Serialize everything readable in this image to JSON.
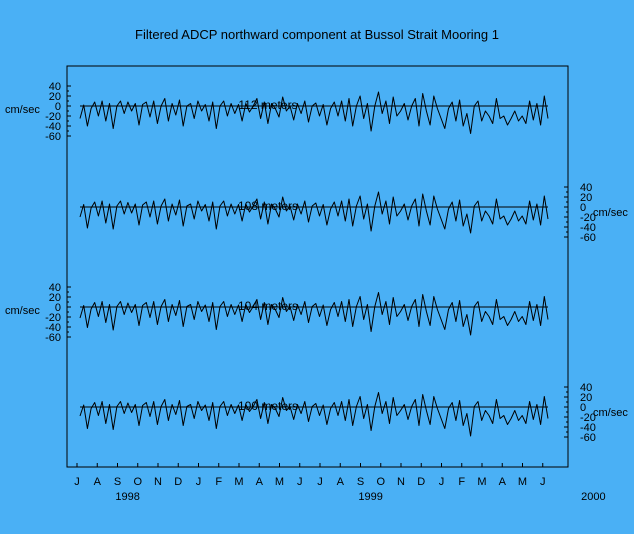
{
  "chart_data": {
    "type": "line",
    "title": "Filtered ADCP northward component at Bussol Strait Mooring 1",
    "background_color": "#4ab0f5",
    "line_color": "#000000",
    "y_unit_label": "cm/sec",
    "y_ticks": [
      "40",
      "20",
      "0",
      "-20",
      "-40",
      "-60"
    ],
    "ylim": [
      -60,
      40
    ],
    "y_axis_sides": [
      "left",
      "right",
      "left",
      "right"
    ],
    "x_month_labels": [
      "J",
      "A",
      "S",
      "O",
      "N",
      "D",
      "J",
      "F",
      "M",
      "A",
      "M",
      "J",
      "J",
      "A",
      "S",
      "O",
      "N",
      "D",
      "J",
      "F",
      "M",
      "A",
      "M",
      "J"
    ],
    "x_year_labels": [
      {
        "label": "1998",
        "month_index": 2.5
      },
      {
        "label": "1999",
        "month_index": 14.5
      },
      {
        "label": "2000",
        "month_index": 25.5
      }
    ],
    "x_start": "1998-07",
    "sample_interval_days": 3,
    "series": [
      {
        "name": "112 meters",
        "values": [
          -25,
          2,
          -40,
          -5,
          8,
          -20,
          10,
          -30,
          5,
          -45,
          0,
          10,
          -15,
          8,
          -10,
          5,
          -38,
          3,
          8,
          -22,
          10,
          -35,
          0,
          15,
          -30,
          5,
          -18,
          12,
          -40,
          0,
          5,
          -25,
          10,
          -10,
          3,
          -30,
          8,
          -45,
          0,
          10,
          -20,
          5,
          -15,
          3,
          -30,
          5,
          -12,
          0,
          15,
          -25,
          8,
          -35,
          5,
          -5,
          -22,
          18,
          -10,
          0,
          -28,
          5,
          -15,
          10,
          -32,
          0,
          6,
          -20,
          3,
          -38,
          -5,
          8,
          -20,
          10,
          -30,
          15,
          -40,
          0,
          20,
          -25,
          5,
          -50,
          0,
          28,
          -15,
          10,
          -35,
          18,
          -20,
          -10,
          5,
          -28,
          0,
          15,
          -40,
          25,
          -10,
          -38,
          20,
          -5,
          -25,
          -45,
          -5,
          8,
          -30,
          12,
          -40,
          -15,
          -55,
          0,
          10,
          -30,
          -10,
          -20,
          -35,
          15,
          -25,
          -20,
          -38,
          -25,
          -10,
          -30,
          -20,
          -35,
          10,
          -28,
          5,
          -38,
          20,
          -25
        ]
      },
      {
        "name": "108 meters",
        "values": [
          -20,
          5,
          -42,
          -2,
          10,
          -18,
          12,
          -32,
          6,
          -44,
          2,
          12,
          -14,
          9,
          -12,
          6,
          -36,
          4,
          10,
          -20,
          12,
          -34,
          2,
          16,
          -28,
          6,
          -16,
          14,
          -38,
          2,
          6,
          -24,
          12,
          -8,
          5,
          -28,
          10,
          -44,
          2,
          12,
          -18,
          6,
          -14,
          5,
          -28,
          6,
          -10,
          2,
          16,
          -24,
          10,
          -34,
          6,
          -4,
          -20,
          20,
          -8,
          2,
          -26,
          6,
          -14,
          12,
          -30,
          2,
          8,
          -18,
          5,
          -36,
          -4,
          10,
          -18,
          12,
          -28,
          16,
          -38,
          2,
          22,
          -24,
          6,
          -48,
          2,
          30,
          -14,
          12,
          -34,
          20,
          -18,
          -8,
          6,
          -26,
          2,
          16,
          -38,
          26,
          -8,
          -36,
          22,
          -4,
          -24,
          -44,
          -4,
          10,
          -28,
          14,
          -38,
          -14,
          -52,
          2,
          12,
          -28,
          -8,
          -18,
          -34,
          16,
          -24,
          -18,
          -36,
          -24,
          -8,
          -28,
          -18,
          -34,
          12,
          -26,
          6,
          -36,
          22,
          -24
        ]
      },
      {
        "name": "104 meters",
        "values": [
          -22,
          3,
          -41,
          -4,
          9,
          -19,
          11,
          -31,
          5,
          -46,
          1,
          11,
          -15,
          8,
          -11,
          5,
          -37,
          3,
          9,
          -21,
          11,
          -35,
          1,
          15,
          -29,
          5,
          -17,
          13,
          -39,
          1,
          5,
          -25,
          11,
          -9,
          4,
          -29,
          9,
          -45,
          1,
          11,
          -19,
          5,
          -15,
          4,
          -29,
          5,
          -11,
          1,
          15,
          -25,
          9,
          -35,
          5,
          -5,
          -21,
          19,
          -9,
          1,
          -27,
          5,
          -15,
          11,
          -31,
          1,
          7,
          -19,
          4,
          -37,
          -5,
          9,
          -19,
          11,
          -29,
          15,
          -39,
          1,
          21,
          -25,
          5,
          -49,
          1,
          29,
          -15,
          11,
          -35,
          19,
          -19,
          -9,
          5,
          -27,
          1,
          15,
          -39,
          25,
          -9,
          -37,
          21,
          -5,
          -25,
          -45,
          -5,
          9,
          -29,
          13,
          -39,
          -15,
          -56,
          1,
          11,
          -29,
          -9,
          -19,
          -35,
          15,
          -25,
          -19,
          -37,
          -25,
          -9,
          -29,
          -19,
          -35,
          11,
          -27,
          5,
          -37,
          21,
          -25
        ]
      },
      {
        "name": "100 meters",
        "values": [
          -18,
          4,
          -43,
          -3,
          9,
          -17,
          11,
          -33,
          5,
          -45,
          1,
          11,
          -13,
          8,
          -11,
          5,
          -37,
          3,
          9,
          -19,
          11,
          -35,
          1,
          15,
          -27,
          5,
          -15,
          13,
          -37,
          1,
          5,
          -23,
          11,
          -7,
          4,
          -27,
          9,
          -43,
          1,
          11,
          -17,
          5,
          -13,
          4,
          -27,
          5,
          -9,
          1,
          15,
          -23,
          9,
          -33,
          5,
          -3,
          -19,
          19,
          -7,
          1,
          -25,
          5,
          -13,
          11,
          -29,
          1,
          7,
          -17,
          4,
          -35,
          -3,
          9,
          -17,
          11,
          -27,
          15,
          -37,
          1,
          21,
          -23,
          5,
          -47,
          1,
          29,
          -13,
          11,
          -33,
          19,
          -17,
          -7,
          5,
          -25,
          1,
          15,
          -37,
          25,
          -7,
          -35,
          21,
          -3,
          -23,
          -43,
          -3,
          9,
          -27,
          13,
          -37,
          -13,
          -58,
          1,
          11,
          -27,
          -7,
          -17,
          -33,
          15,
          -23,
          -17,
          -35,
          -23,
          -7,
          -27,
          -17,
          -33,
          11,
          -25,
          5,
          -35,
          21,
          -23
        ]
      }
    ]
  }
}
